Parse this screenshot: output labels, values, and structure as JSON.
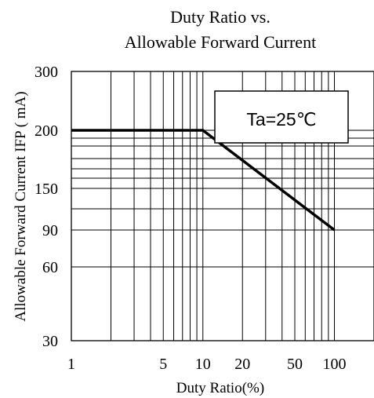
{
  "chart_data": {
    "type": "line",
    "title_lines": [
      "Duty Ratio vs.",
      "Allowable Forward Current"
    ],
    "xlabel": "Duty Ratio(%)",
    "ylabel": "Allowable Forward Current IFP ( mA)",
    "x_ticks": [
      1,
      5,
      10,
      20,
      50,
      100
    ],
    "y_ticks": [
      30,
      60,
      90,
      150,
      200,
      300
    ],
    "xlim": [
      1,
      200
    ],
    "series": [
      {
        "x": [
          1,
          10,
          100
        ],
        "y": [
          200,
          200,
          90
        ]
      }
    ],
    "annotation": "Ta=25℃",
    "grid": true
  }
}
